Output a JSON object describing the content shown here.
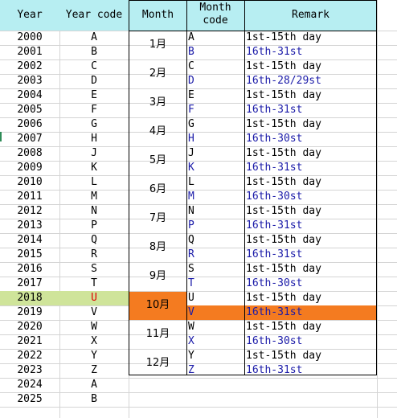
{
  "left_headers": {
    "year": "Year",
    "year_code": "Year code"
  },
  "years": [
    {
      "year": "2000",
      "code": "A"
    },
    {
      "year": "2001",
      "code": "B"
    },
    {
      "year": "2002",
      "code": "C"
    },
    {
      "year": "2003",
      "code": "D"
    },
    {
      "year": "2004",
      "code": "E"
    },
    {
      "year": "2005",
      "code": "F"
    },
    {
      "year": "2006",
      "code": "G"
    },
    {
      "year": "2007",
      "code": "H"
    },
    {
      "year": "2008",
      "code": "J"
    },
    {
      "year": "2009",
      "code": "K"
    },
    {
      "year": "2010",
      "code": "L"
    },
    {
      "year": "2011",
      "code": "M"
    },
    {
      "year": "2012",
      "code": "N"
    },
    {
      "year": "2013",
      "code": "P"
    },
    {
      "year": "2014",
      "code": "Q"
    },
    {
      "year": "2015",
      "code": "R"
    },
    {
      "year": "2016",
      "code": "S"
    },
    {
      "year": "2017",
      "code": "T"
    },
    {
      "year": "2018",
      "code": "U"
    },
    {
      "year": "2019",
      "code": "V"
    },
    {
      "year": "2020",
      "code": "W"
    },
    {
      "year": "2021",
      "code": "X"
    },
    {
      "year": "2022",
      "code": "Y"
    },
    {
      "year": "2023",
      "code": "Z"
    },
    {
      "year": "2024",
      "code": "A"
    },
    {
      "year": "2025",
      "code": "B"
    }
  ],
  "table_headers": {
    "month": "Month",
    "month_code_line1": "Month",
    "month_code_line2": "code",
    "remark": "Remark"
  },
  "months": [
    {
      "label": "1月",
      "codes": [
        "A",
        "B"
      ],
      "remarks": [
        "1st-15th day",
        "16th-31st"
      ]
    },
    {
      "label": "2月",
      "codes": [
        "C",
        "D"
      ],
      "remarks": [
        "1st-15th day",
        "16th-28/29st"
      ]
    },
    {
      "label": "3月",
      "codes": [
        "E",
        "F"
      ],
      "remarks": [
        "1st-15th day",
        "16th-31st"
      ]
    },
    {
      "label": "4月",
      "codes": [
        "G",
        "H"
      ],
      "remarks": [
        "1st-15th day",
        "16th-30st"
      ]
    },
    {
      "label": "5月",
      "codes": [
        "J",
        "K"
      ],
      "remarks": [
        "1st-15th day",
        "16th-31st"
      ]
    },
    {
      "label": "6月",
      "codes": [
        "L",
        "M"
      ],
      "remarks": [
        "1st-15th day",
        "16th-30st"
      ]
    },
    {
      "label": "7月",
      "codes": [
        "N",
        "P"
      ],
      "remarks": [
        "1st-15th day",
        "16th-31st"
      ]
    },
    {
      "label": "8月",
      "codes": [
        "Q",
        "R"
      ],
      "remarks": [
        "1st-15th day",
        "16th-31st"
      ]
    },
    {
      "label": "9月",
      "codes": [
        "S",
        "T"
      ],
      "remarks": [
        "1st-15th day",
        "16th-30st"
      ]
    },
    {
      "label": "10月",
      "codes": [
        "U",
        "V"
      ],
      "remarks": [
        "1st-15th day",
        "16th-31st"
      ]
    },
    {
      "label": "11月",
      "codes": [
        "W",
        "X"
      ],
      "remarks": [
        "1st-15th day",
        "16th-30st"
      ]
    },
    {
      "label": "12月",
      "codes": [
        "Y",
        "Z"
      ],
      "remarks": [
        "1st-15th day",
        "16th-31st"
      ]
    }
  ],
  "highlights": {
    "current_year": "2018",
    "current_month": "10月",
    "current_half_code": "V",
    "year_highlight_color": "#cfe49a",
    "month_highlight_color": "#f47b20",
    "header_color": "#b7eef2",
    "second_half_text_color": "#1a1aa8",
    "current_year_code_color": "#e00000"
  }
}
